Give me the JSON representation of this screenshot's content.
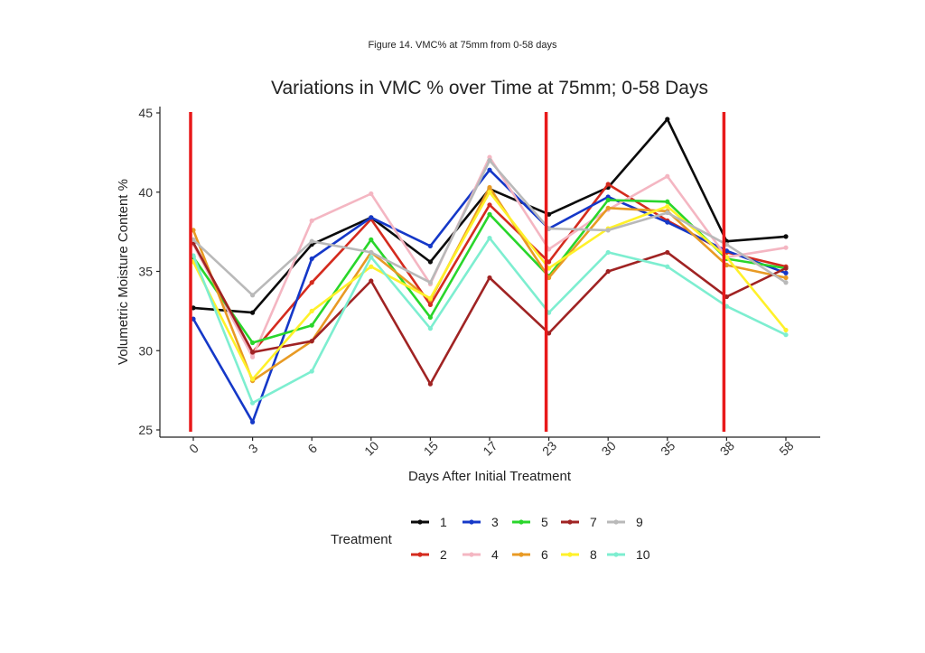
{
  "caption": "Figure 14. VMC% at 75mm from 0-58 days",
  "chart_data": {
    "type": "line",
    "title": "Variations in VMC % over Time at 75mm; 0-58 Days",
    "xlabel": "Days After Initial Treatment",
    "ylabel": "Volumetric Moisture Content %",
    "categories": [
      "0",
      "3",
      "6",
      "10",
      "15",
      "17",
      "23",
      "30",
      "35",
      "38",
      "58"
    ],
    "ylim": [
      25,
      45
    ],
    "yticks": [
      25,
      30,
      35,
      40,
      45
    ],
    "grid": false,
    "legend_title": "Treatment",
    "legend_position": "bottom",
    "vertical_markers": {
      "color": "#e8191a",
      "at_categories": [
        "0",
        "23",
        "38"
      ]
    },
    "series": [
      {
        "name": "1",
        "color": "#0b0b0b",
        "values": [
          32.7,
          32.4,
          36.7,
          38.4,
          35.6,
          40.2,
          38.6,
          40.3,
          44.6,
          36.9,
          37.2
        ]
      },
      {
        "name": "2",
        "color": "#d42b1e",
        "values": [
          36.8,
          29.9,
          34.3,
          38.3,
          32.9,
          39.2,
          35.6,
          40.5,
          38.2,
          36.2,
          35.3
        ]
      },
      {
        "name": "3",
        "color": "#1538c8",
        "values": [
          32.0,
          25.5,
          35.8,
          38.4,
          36.6,
          41.4,
          37.7,
          39.7,
          38.1,
          36.3,
          34.9
        ]
      },
      {
        "name": "4",
        "color": "#f4b6c2",
        "values": [
          36.7,
          29.6,
          38.2,
          39.9,
          34.2,
          42.2,
          36.4,
          38.9,
          41.0,
          35.9,
          36.5
        ]
      },
      {
        "name": "5",
        "color": "#29d62b",
        "values": [
          35.9,
          30.5,
          31.6,
          37.0,
          32.1,
          38.6,
          34.7,
          39.5,
          39.4,
          35.8,
          35.2
        ]
      },
      {
        "name": "6",
        "color": "#e89a24",
        "values": [
          37.6,
          28.1,
          30.6,
          36.2,
          33.2,
          40.3,
          34.6,
          39.0,
          38.8,
          35.4,
          34.6
        ]
      },
      {
        "name": "7",
        "color": "#a02323",
        "values": [
          36.8,
          29.9,
          30.6,
          34.4,
          27.9,
          34.6,
          31.1,
          35.0,
          36.2,
          33.4,
          35.2
        ]
      },
      {
        "name": "8",
        "color": "#fff12a",
        "values": [
          35.6,
          28.2,
          32.5,
          35.3,
          33.3,
          40.0,
          35.2,
          37.7,
          39.1,
          35.9,
          31.3
        ]
      },
      {
        "name": "9",
        "color": "#b9b9b9",
        "values": [
          37.0,
          33.5,
          36.9,
          36.2,
          34.3,
          42.0,
          37.7,
          37.6,
          38.7,
          36.7,
          34.3
        ]
      },
      {
        "name": "10",
        "color": "#7deed0",
        "values": [
          36.0,
          26.7,
          28.7,
          35.9,
          31.4,
          37.1,
          32.4,
          36.2,
          35.3,
          32.8,
          31.0
        ]
      }
    ]
  }
}
